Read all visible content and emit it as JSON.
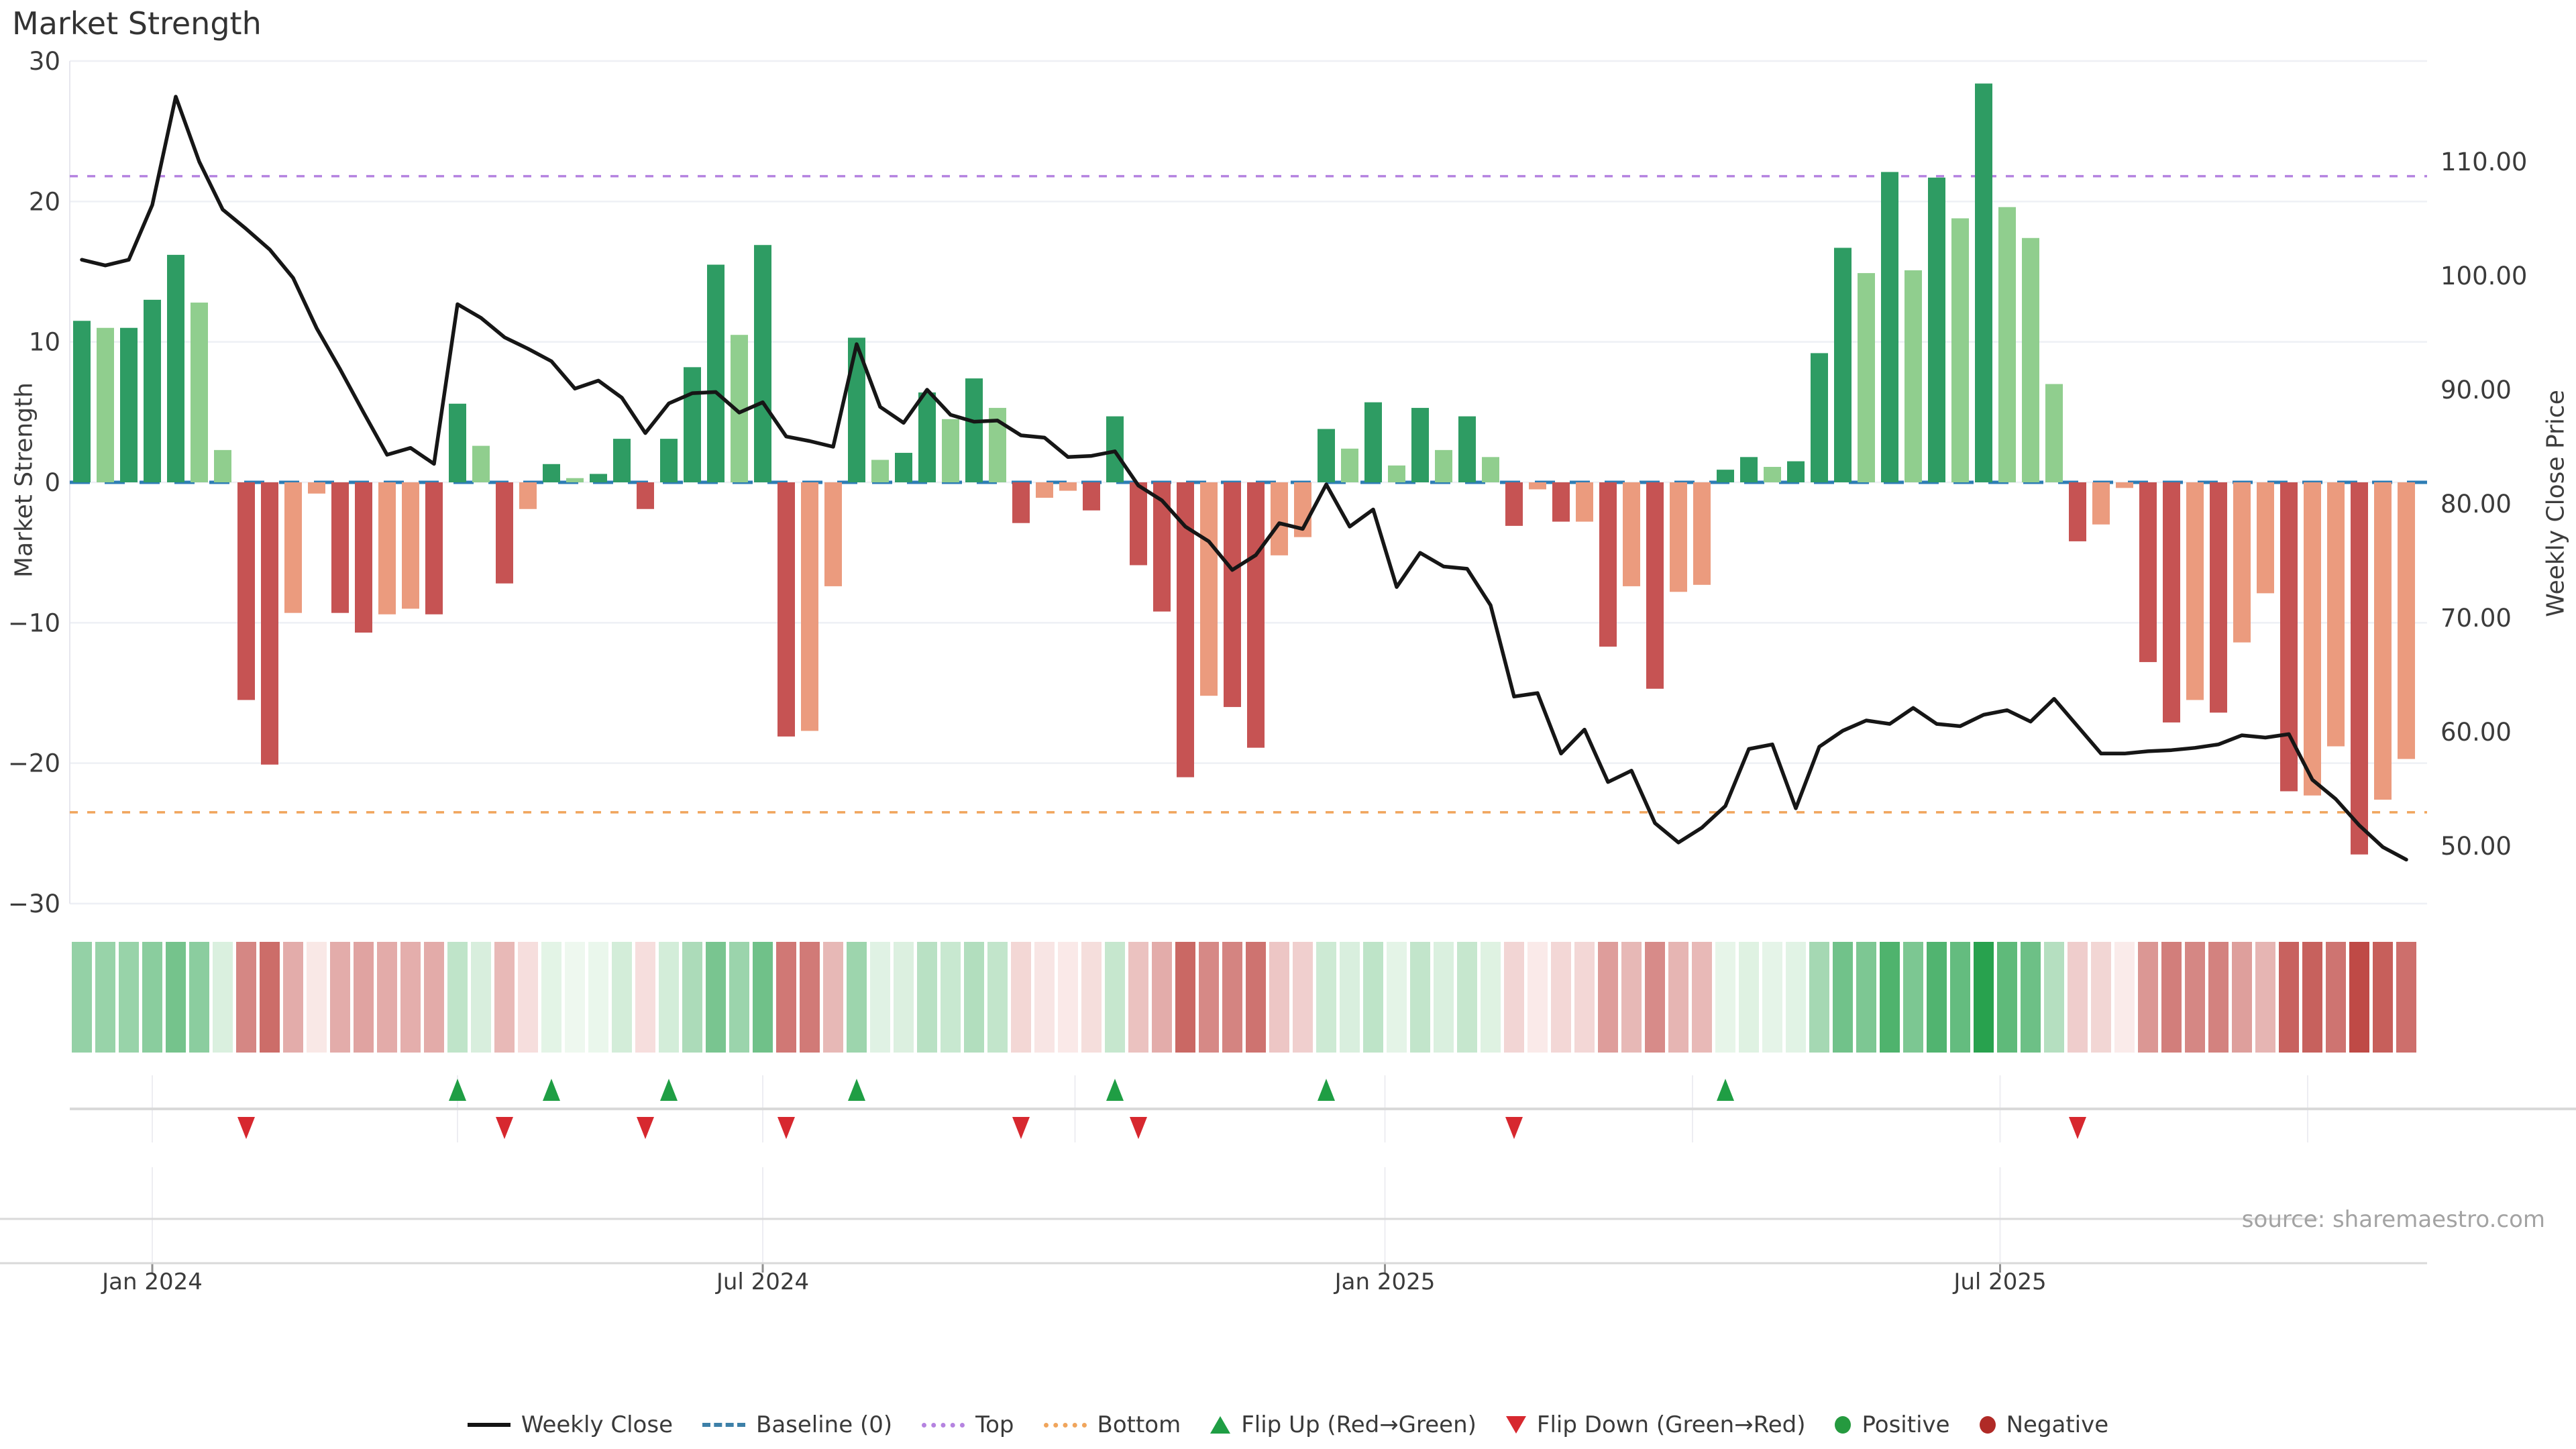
{
  "title": "Market Strength",
  "source": "source: sharemaestro.com",
  "left_axis": {
    "title": "Market Strength",
    "ticks": [
      30,
      20,
      10,
      0,
      -10,
      -20,
      -30
    ]
  },
  "right_axis": {
    "title": "Weekly Close Price",
    "tick_labels": [
      "110.00",
      "100.00",
      "90.00",
      "80.00",
      "70.00",
      "60.00",
      "50.00"
    ],
    "tick_values": [
      110,
      100,
      90,
      80,
      70,
      60,
      50
    ]
  },
  "x_axis": {
    "ticks": [
      {
        "label": "Jan 2024",
        "week": 4.0,
        "labeled": true
      },
      {
        "label": "",
        "week": 17.0,
        "labeled": false
      },
      {
        "label": "Jul 2024",
        "week": 30.0,
        "labeled": true
      },
      {
        "label": "",
        "week": 43.3,
        "labeled": false
      },
      {
        "label": "Jan 2025",
        "week": 56.5,
        "labeled": true
      },
      {
        "label": "",
        "week": 69.6,
        "labeled": false
      },
      {
        "label": "Jul 2025",
        "week": 82.7,
        "labeled": true
      },
      {
        "label": "",
        "week": 95.8,
        "labeled": false
      }
    ]
  },
  "legend": {
    "items": [
      {
        "label": "Weekly Close",
        "swatch": "line"
      },
      {
        "label": "Baseline (0)",
        "swatch": "dash"
      },
      {
        "label": "Top",
        "swatch": "dot-purple"
      },
      {
        "label": "Bottom",
        "swatch": "dot-orange"
      },
      {
        "label": "Flip Up (Red→Green)",
        "swatch": "tri-up"
      },
      {
        "label": "Flip Down (Green→Red)",
        "swatch": "tri-down"
      },
      {
        "label": "Positive",
        "swatch": "circ-green"
      },
      {
        "label": "Negative",
        "swatch": "circ-red"
      }
    ]
  },
  "colors": {
    "bar_green_dark": "#2e9c63",
    "bar_green_light": "#90ce8e",
    "bar_red_dark": "#c65353",
    "bar_red_light": "#eb9b7e",
    "line": "#161616",
    "baseline": "#2e7db5",
    "top_line": "#b583e0",
    "bottom_line": "#f0a55c",
    "grid": "#eef0f5",
    "spine": "#d9d9d9",
    "band_grid": "#ededf2",
    "flip_up": "#1f9e44",
    "flip_down": "#d7282f",
    "heat_pos_low": "#f2faf2",
    "heat_pos_high": "#28a24e",
    "heat_neg_low": "#fcf0ef",
    "heat_neg_high": "#bf4a46",
    "axis_text": "#3b3b3b"
  },
  "chart_data": {
    "type": "bar",
    "subtype": "bar+line+heatmap+flip-markers",
    "title": "Market Strength",
    "xlabel": "",
    "ylabel_left": "Market Strength",
    "ylabel_right": "Weekly Close Price",
    "ylim_left": [
      -30,
      30
    ],
    "grid": true,
    "legend_position": "bottom-center",
    "baseline": 0,
    "top_threshold": 21.8,
    "bottom_threshold": -23.5,
    "weeks": 100,
    "x_tick_labels": [
      "Jan 2024",
      "Jul 2024",
      "Jan 2025",
      "Jul 2025"
    ],
    "series": [
      {
        "name": "Market Strength",
        "type": "bar",
        "axis": "left",
        "values": [
          11.5,
          11,
          11,
          13,
          16.2,
          12.8,
          2.3,
          -15.5,
          -20.1,
          -9.3,
          -0.8,
          -9.3,
          -10.7,
          -9.4,
          -9,
          -9.4,
          5.6,
          2.6,
          -7.2,
          -1.9,
          1.3,
          0.3,
          0.6,
          3.1,
          -1.9,
          3.1,
          8.2,
          15.5,
          10.5,
          16.9,
          -18.1,
          -17.7,
          -7.4,
          10.3,
          1.6,
          2.1,
          6.4,
          4.5,
          7.4,
          5.3,
          -2.9,
          -1.1,
          -0.6,
          -2,
          4.7,
          -5.9,
          -9.2,
          -21,
          -15.2,
          -16,
          -18.9,
          -5.2,
          -3.9,
          3.8,
          2.4,
          5.7,
          1.2,
          5.3,
          2.3,
          4.7,
          1.8,
          -3.1,
          -0.5,
          -2.8,
          -2.8,
          -11.7,
          -7.4,
          -14.7,
          -7.8,
          -7.3,
          0.9,
          1.8,
          1.1,
          1.5,
          9.2,
          16.7,
          14.9,
          22.1,
          15.1,
          21.7,
          18.8,
          28.4,
          19.6,
          17.4,
          7,
          -4.2,
          -3,
          -0.4,
          -12.8,
          -17.1,
          -15.5,
          -16.4,
          -11.4,
          -7.9,
          -22,
          -22.3,
          -18.8,
          -26.5,
          -22.6,
          -19.7
        ],
        "shade_dark": [
          1,
          0,
          1,
          1,
          1,
          0,
          0,
          1,
          1,
          0,
          0,
          1,
          1,
          0,
          0,
          1,
          1,
          0,
          1,
          0,
          1,
          0,
          1,
          1,
          1,
          1,
          1,
          1,
          0,
          1,
          1,
          0,
          0,
          1,
          0,
          1,
          1,
          0,
          1,
          0,
          1,
          0,
          0,
          1,
          1,
          1,
          1,
          1,
          0,
          1,
          1,
          0,
          0,
          1,
          0,
          1,
          0,
          1,
          0,
          1,
          0,
          1,
          0,
          1,
          0,
          1,
          0,
          1,
          0,
          0,
          1,
          1,
          0,
          1,
          1,
          1,
          0,
          1,
          0,
          1,
          0,
          1,
          0,
          0,
          0,
          1,
          0,
          0,
          1,
          1,
          0,
          1,
          0,
          0,
          1,
          0,
          0,
          1,
          0,
          0
        ]
      },
      {
        "name": "Weekly Close",
        "type": "line",
        "axis": "right",
        "values": [
          101.4,
          100.9,
          101.4,
          106.2,
          115.7,
          110,
          105.8,
          104.1,
          102.3,
          99.8,
          95.4,
          91.8,
          88,
          84.3,
          84.9,
          83.5,
          97.5,
          96.3,
          94.6,
          93.6,
          92.5,
          90.1,
          90.8,
          89.3,
          86.2,
          88.8,
          89.7,
          89.8,
          88,
          88.9,
          85.9,
          85.5,
          85,
          94,
          88.5,
          87.1,
          90,
          87.8,
          87.2,
          87.3,
          86,
          85.8,
          84.1,
          84.2,
          84.6,
          81.6,
          80.3,
          78,
          76.7,
          74.2,
          75.5,
          78.3,
          77.8,
          81.7,
          78,
          79.5,
          72.7,
          75.7,
          74.5,
          74.3,
          71.1,
          63.1,
          63.4,
          58.1,
          60.2,
          55.6,
          56.6,
          52,
          50.3,
          51.6,
          53.5,
          58.5,
          58.9,
          53.3,
          58.7,
          60.1,
          61,
          60.7,
          62.1,
          60.7,
          60.5,
          61.5,
          61.9,
          60.9,
          62.9,
          60.5,
          58.1,
          58.1,
          58.3,
          58.4,
          58.6,
          58.9,
          59.7,
          59.5,
          59.8,
          55.8,
          54.1,
          51.8,
          49.9,
          48.8
        ]
      }
    ],
    "flip_marker_rule": "up = first positive week after negative; down = first negative week after positive"
  }
}
